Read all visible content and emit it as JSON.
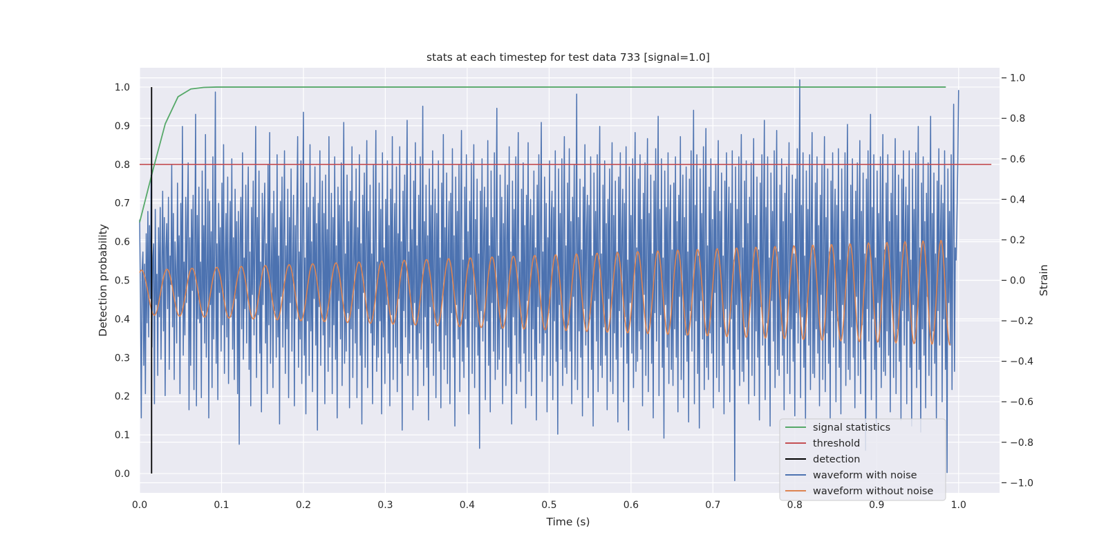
{
  "chart_data": {
    "type": "line",
    "title": "stats at each timestep for test data 733 [signal=1.0]",
    "xlabel": "Time (s)",
    "ylabel_left": "Detection probability",
    "ylabel_right": "Strain",
    "xlim": [
      0.0,
      1.05
    ],
    "ylim_left": [
      -0.05,
      1.05
    ],
    "ylim_right": [
      -1.05,
      1.05
    ],
    "x_ticks": [
      "0.0",
      "0.1",
      "0.2",
      "0.3",
      "0.4",
      "0.5",
      "0.6",
      "0.7",
      "0.8",
      "0.9",
      "1.0"
    ],
    "y_ticks_left": [
      "0.0",
      "0.1",
      "0.2",
      "0.3",
      "0.4",
      "0.5",
      "0.6",
      "0.7",
      "0.8",
      "0.9",
      "1.0"
    ],
    "y_ticks_right": [
      "−1.0",
      "−0.8",
      "−0.6",
      "−0.4",
      "−0.2",
      "0.0",
      "0.2",
      "0.4",
      "0.6",
      "0.8",
      "1.0"
    ],
    "grid": true,
    "legend_position": "bottom-right",
    "colors": {
      "plot_bg": "#eaeaf2",
      "grid": "#ffffff",
      "signal_statistics": "#55a868",
      "threshold": "#c44e52",
      "detection": "#000000",
      "waveform_with_noise": "#4c72b0",
      "waveform_without_noise": "#dd8452"
    },
    "series": [
      {
        "name": "signal statistics",
        "axis": "left",
        "x": [
          0.0,
          0.0156,
          0.0313,
          0.0469,
          0.0625,
          0.0781,
          0.0938,
          0.1094,
          0.125,
          0.25,
          0.5,
          0.75,
          0.9844
        ],
        "y": [
          0.65,
          0.78,
          0.905,
          0.975,
          0.995,
          0.999,
          1.0,
          1.0,
          1.0,
          1.0,
          1.0,
          1.0,
          1.0
        ]
      },
      {
        "name": "threshold",
        "axis": "left",
        "x": [
          0.0,
          1.04
        ],
        "y": [
          0.8,
          0.8
        ]
      },
      {
        "name": "detection",
        "axis": "left",
        "x": [
          0.0146,
          0.0146
        ],
        "y": [
          0.0,
          1.0
        ]
      },
      {
        "name": "waveform with noise",
        "axis": "right",
        "t_start": 0.0,
        "t_end": 1.0,
        "samples": 1000,
        "y": [
          0.3,
          -0.1,
          -0.68,
          0.05,
          0.14,
          -0.42,
          0.08,
          -0.56,
          0.23,
          -0.21,
          0.34,
          -0.28,
          0.27,
          -0.09,
          0.52,
          -0.33,
          0.11,
          0.18,
          -0.61,
          0.35,
          -0.12,
          0.03,
          -0.47,
          0.26,
          -0.18,
          0.36,
          -0.39,
          0.07,
          0.44,
          -0.25,
          0.31,
          -0.57,
          0.16,
          0.28,
          -0.14,
          0.41,
          -0.44,
          0.12,
          -0.02,
          0.57,
          -0.23,
          0.33,
          -0.49,
          0.19,
          0.05,
          -0.31,
          0.48,
          -0.08,
          0.22,
          -0.56,
          0.38,
          -0.16,
          0.76,
          -0.37,
          0.09,
          -0.27,
          0.41,
          -0.11,
          0.29,
          0.58,
          -0.64,
          0.21,
          -0.42,
          0.35,
          -0.05,
          0.42,
          -0.54,
          0.13,
          0.82,
          -0.62,
          0.32,
          -0.19,
          0.46,
          -0.21,
          0.09,
          -0.58,
          0.54,
          -0.15,
          0.27,
          -0.31,
          0.72,
          -0.38,
          0.06,
          0.45,
          -0.68,
          0.39,
          -0.12,
          0.24,
          -0.53,
          0.61,
          -0.29,
          0.15,
          0.93,
          -0.41,
          0.18,
          -0.59,
          0.38,
          -0.06,
          0.26,
          -0.35,
          0.48,
          -0.22,
          0.67,
          -0.46,
          0.12,
          0.33,
          -0.28,
          0.51,
          -0.51,
          0.08,
          0.39,
          -0.18,
          0.6,
          -0.34,
          0.21,
          -0.49,
          0.45,
          -0.09,
          0.29,
          -0.56,
          0.34,
          -0.81,
          0.19,
          0.41,
          -0.24,
          0.63,
          -0.39,
          0.11,
          -0.14,
          0.47,
          -0.31,
          0.25,
          0.56,
          -0.44,
          0.14,
          -0.62,
          0.36,
          -0.07,
          0.49,
          -0.27,
          0.2,
          0.76,
          -0.48,
          0.31,
          -0.17,
          0.54,
          -0.36,
          0.09,
          -0.65,
          0.43,
          -0.12,
          0.28,
          0.48,
          -0.31,
          0.18,
          -0.56,
          0.57,
          -0.22,
          0.73,
          -0.41,
          0.06,
          0.33,
          -0.53,
          0.44,
          -0.15,
          0.26,
          -0.38,
          0.62,
          -0.28,
          0.12,
          -0.71,
          0.39,
          -0.08,
          0.51,
          -0.33,
          0.22,
          0.64,
          -0.46,
          0.17,
          -0.24,
          0.45,
          -0.58,
          0.31,
          -0.11,
          0.55,
          -0.35,
          0.08,
          0.42,
          -0.62,
          0.27,
          -0.19,
          0.35,
          0.71,
          -0.43,
          0.14,
          -0.29,
          0.59,
          -0.51,
          0.24,
          0.83,
          -0.37,
          0.11,
          -0.66,
          0.48,
          -0.2,
          0.36,
          -0.47,
          0.67,
          -0.25,
          0.19,
          -0.55,
          0.41,
          -0.09,
          0.56,
          -0.32,
          0.28,
          -0.74,
          0.38,
          -0.13,
          0.64,
          -0.42,
          0.15,
          0.49,
          -0.27,
          0.33,
          -0.61,
          0.52,
          -0.18,
          0.25,
          -0.45,
          0.71,
          -0.33,
          0.09,
          0.43,
          -0.56,
          0.31,
          -0.22,
          0.61,
          -0.39,
          0.17,
          -0.68,
          0.46,
          -0.1,
          0.37,
          -0.29,
          0.58,
          -0.52,
          0.21,
          0.78,
          -0.41,
          0.13,
          -0.35,
          0.52,
          -0.16,
          0.29,
          -0.63,
          0.44,
          -0.24,
          0.66,
          -0.48,
          0.1,
          0.39,
          -0.31,
          0.55,
          -0.58,
          0.26,
          -0.14,
          0.62,
          -0.37,
          0.18,
          -0.71,
          0.42,
          -0.06,
          0.53,
          -0.43,
          0.24,
          0.69,
          -0.53,
          0.34,
          -0.19,
          0.47,
          -0.26,
          0.13,
          -0.61,
          0.57,
          -0.32,
          0.21,
          0.74,
          -0.45,
          0.09,
          -0.38,
          0.48,
          -0.2,
          0.35,
          -0.66,
          0.63,
          -0.28,
          0.16,
          -0.51,
          0.4,
          -0.12,
          0.59,
          -0.36,
          0.27,
          -0.62,
          0.45,
          -0.17,
          0.71,
          -0.49,
          0.12,
          0.38,
          -0.33,
          0.56,
          -0.55,
          0.23,
          -0.09,
          0.66,
          -0.41,
          0.19,
          -0.74,
          0.44,
          -0.15,
          0.52,
          -0.28,
          0.31,
          0.79,
          -0.47,
          0.14,
          -0.36,
          0.58,
          -0.22,
          0.25,
          -0.64,
          0.49,
          -0.11,
          0.68,
          -0.39,
          0.17,
          -0.57,
          0.42,
          -0.26,
          0.61,
          -0.34,
          0.08,
          0.86,
          -0.52,
          0.29,
          -0.18,
          0.47,
          -0.43,
          0.22,
          -0.69,
          0.55,
          -0.13,
          0.37,
          -0.31,
          0.64,
          -0.47,
          0.15,
          0.45,
          -0.58,
          0.33,
          -0.21,
          0.59,
          -0.35,
          0.11,
          -0.63,
          0.48,
          -0.08,
          0.72,
          -0.44,
          0.26,
          -0.27,
          0.53,
          -0.51,
          0.18,
          0.39,
          -0.61,
          0.43,
          -0.16,
          0.65,
          -0.38,
          0.22,
          -0.72,
          0.51,
          -0.12,
          0.34,
          -0.29,
          0.57,
          -0.55,
          0.27,
          0.74,
          -0.4,
          0.1,
          -0.48,
          0.46,
          -0.19,
          0.62,
          -0.33,
          0.24,
          -0.66,
          0.39,
          -0.07,
          0.58,
          -0.46,
          0.16,
          0.67,
          -0.53,
          0.3,
          -0.23,
          0.5,
          -0.37,
          0.13,
          -0.83,
          0.44,
          -0.15,
          0.6,
          -0.3,
          0.21,
          0.46,
          -0.59,
          0.36,
          -0.2,
          0.69,
          -0.42,
          0.17,
          -0.65,
          0.54,
          -0.11,
          0.31,
          -0.35,
          0.63,
          -0.49,
          0.25,
          0.85,
          -0.44,
          0.12,
          -0.39,
          0.52,
          -0.24,
          0.41,
          -0.61,
          0.28,
          -0.14,
          0.57,
          -0.52,
          0.19,
          0.47,
          -0.33,
          0.66,
          -0.46,
          0.14,
          -0.71,
          0.49,
          -0.18,
          0.35,
          -0.27,
          0.61,
          -0.56,
          0.23,
          0.73,
          -0.41,
          0.09,
          -0.5,
          0.45,
          -0.21,
          0.58,
          -0.36,
          0.27,
          -0.63,
          0.42,
          -0.1,
          0.68,
          -0.45,
          0.2,
          0.4,
          -0.57,
          0.32,
          -0.24,
          0.54,
          -0.39,
          0.16,
          -0.69,
          0.47,
          -0.13,
          0.62,
          -0.31,
          0.26,
          0.78,
          -0.5,
          0.14,
          -0.37,
          0.51,
          -0.26,
          0.38,
          -0.65,
          0.21,
          -0.16,
          0.59,
          -0.47,
          0.29,
          0.44,
          -0.59,
          0.36,
          -0.2,
          0.64,
          -0.4,
          0.11,
          -0.76,
          0.55,
          -0.12,
          0.33,
          -0.34,
          0.6,
          -0.52,
          0.24,
          0.71,
          -0.43,
          0.17,
          -0.46,
          0.48,
          -0.22,
          0.65,
          -0.35,
          0.29,
          -0.61,
          0.41,
          -0.08,
          0.57,
          -0.49,
          0.18,
          0.92,
          -0.54,
          0.31,
          -0.25,
          0.5,
          -0.38,
          0.15,
          -0.67,
          0.46,
          -0.14,
          0.67,
          -0.32,
          0.23,
          0.42,
          -0.58,
          0.37,
          -0.19,
          0.61,
          -0.44,
          0.12,
          -0.72,
          0.53,
          -0.1,
          0.34,
          -0.3,
          0.62,
          -0.55,
          0.26,
          0.76,
          -0.42,
          0.13,
          -0.48,
          0.47,
          -0.23,
          0.59,
          -0.37,
          0.28,
          -0.64,
          0.4,
          -0.09,
          0.55,
          -0.5,
          0.19,
          0.68,
          -0.56,
          0.32,
          -0.26,
          0.49,
          -0.39,
          0.14,
          -0.7,
          0.51,
          -0.15,
          0.63,
          -0.33,
          0.22,
          0.45,
          -0.6,
          0.38,
          -0.18,
          0.66,
          -0.41,
          0.1,
          -0.74,
          0.56,
          -0.11,
          0.32,
          -0.36,
          0.6,
          -0.53,
          0.25,
          0.73,
          -0.45,
          0.16,
          -0.4,
          0.5,
          -0.25,
          0.62,
          -0.34,
          0.3,
          -0.62,
          0.43,
          -0.07,
          0.58,
          -0.47,
          0.2,
          0.7,
          -0.55,
          0.33,
          -0.22,
          0.52,
          -0.41,
          0.13,
          -0.68,
          0.49,
          -0.16,
          0.65,
          -0.3,
          0.24,
          0.81,
          -0.57,
          0.35,
          -0.17,
          0.6,
          -0.43,
          0.11,
          -0.78,
          0.54,
          -0.12,
          0.36,
          -0.33,
          0.63,
          -0.51,
          0.27,
          0.47,
          -0.44,
          0.15,
          -0.52,
          0.48,
          -0.24,
          0.61,
          -0.38,
          0.29,
          -0.65,
          0.42,
          -0.08,
          0.71,
          -0.49,
          0.18,
          0.52,
          -0.58,
          0.31,
          -0.27,
          0.56,
          -0.4,
          0.14,
          -0.7,
          0.5,
          -0.15,
          0.64,
          -0.35,
          0.23,
          0.84,
          -0.61,
          0.37,
          -0.2,
          0.62,
          -0.46,
          0.12,
          -0.73,
          0.55,
          -0.1,
          0.33,
          -0.29,
          0.66,
          -0.54,
          0.26,
          0.75,
          -0.43,
          0.17,
          -0.49,
          0.46,
          -0.26,
          0.6,
          -0.36,
          0.3,
          -0.63,
          0.44,
          -0.06,
          0.57,
          -0.48,
          0.21,
          0.69,
          -0.55,
          0.34,
          -0.23,
          0.53,
          -0.42,
          0.12,
          -0.66,
          0.49,
          -0.14,
          0.63,
          -0.31,
          0.25,
          0.46,
          -0.6,
          0.38,
          -0.19,
          0.64,
          -0.44,
          0.1,
          -0.99,
          0.56,
          -0.12,
          0.35,
          -0.34,
          0.61,
          -0.52,
          0.27,
          0.72,
          -0.45,
          0.16,
          -0.5,
          0.49,
          -0.23,
          0.59,
          -0.39,
          0.28,
          -0.61,
          0.41,
          -0.08,
          0.58,
          -0.47,
          0.19,
          0.7,
          -0.57,
          0.32,
          -0.25,
          0.51,
          -0.38,
          0.15,
          -0.69,
          0.48,
          -0.13,
          0.62,
          -0.32,
          0.24,
          0.79,
          -0.59,
          0.36,
          -0.21,
          0.61,
          -0.42,
          0.11,
          -0.72,
          0.53,
          -0.1,
          0.34,
          -0.3,
          0.64,
          -0.53,
          0.26,
          0.74,
          -0.44,
          0.14,
          -0.47,
          0.47,
          -0.25,
          0.6,
          -0.37,
          0.29,
          -0.64,
          0.43,
          -0.09,
          0.56,
          -0.46,
          0.2,
          0.68,
          -0.56,
          0.33,
          -0.24,
          0.52,
          -0.4,
          0.13,
          -0.67,
          0.5,
          -0.16,
          0.65,
          -0.31,
          0.22,
          0.99,
          -0.58,
          0.37,
          -0.18,
          0.63,
          -0.43,
          0.12,
          -0.71,
          0.54,
          -0.11,
          0.35,
          -0.32,
          0.62,
          -0.54,
          0.28,
          0.73,
          -0.46,
          0.15,
          -0.48,
          0.48,
          -0.24,
          0.61,
          -0.36,
          0.27,
          -0.62,
          0.42,
          -0.07,
          0.57,
          -0.49,
          0.19,
          0.71,
          -0.55,
          0.31,
          -0.26,
          0.55,
          -0.41,
          0.14,
          -0.68,
          0.49,
          -0.15,
          0.63,
          -0.33,
          0.23,
          0.45,
          -0.6,
          0.37,
          -0.2,
          0.65,
          -0.43,
          0.1,
          -0.66,
          0.55,
          -0.12,
          0.34,
          -0.31,
          0.63,
          -0.52,
          0.25,
          0.77,
          -0.44,
          0.16,
          -0.49,
          0.47,
          -0.23,
          0.6,
          -0.38,
          0.3,
          -0.63,
          0.44,
          -0.08,
          0.58,
          -0.47,
          0.2,
          0.69,
          -0.56,
          0.34,
          -0.22,
          0.53,
          -0.39,
          0.13,
          -0.84,
          0.5,
          -0.14,
          0.64,
          -0.3,
          0.25,
          0.82,
          -0.59,
          0.36,
          -0.19,
          0.62,
          -0.44,
          0.11,
          -0.74,
          0.54,
          -0.11,
          0.33,
          -0.33,
          0.61,
          -0.53,
          0.27,
          0.72,
          -0.45,
          0.15,
          -0.47,
          0.48,
          -0.25,
          0.62,
          -0.37,
          0.29,
          -0.65,
          0.43,
          -0.09,
          0.57,
          -0.48,
          0.18,
          0.7,
          -0.56,
          0.32,
          -0.24,
          0.52,
          -0.4,
          0.14,
          -0.69,
          0.5,
          -0.15,
          0.64,
          -0.32,
          0.24,
          0.46,
          -0.61,
          0.37,
          -0.2,
          0.64,
          -0.43,
          0.1,
          -0.72,
          0.55,
          -0.12,
          0.35,
          -0.31,
          0.63,
          -0.53,
          0.26,
          0.76,
          -0.44,
          0.16,
          -0.75,
          0.48,
          -0.24,
          0.61,
          -0.37,
          0.29,
          -0.63,
          0.43,
          -0.08,
          0.58,
          -0.47,
          0.2,
          0.81,
          -0.57,
          0.33,
          -0.25,
          0.53,
          -0.41,
          0.13,
          -0.68,
          0.49,
          -0.15,
          0.65,
          -0.32,
          0.24,
          0.47,
          -0.6,
          0.38,
          -0.19,
          0.64,
          -0.44,
          0.11,
          -0.95,
          0.55,
          -0.11,
          0.34,
          -0.32,
          0.62,
          -0.54,
          0.27,
          0.87,
          -0.45,
          0.16,
          0.1,
          0.31,
          0.56,
          0.94
        ]
      },
      {
        "name": "waveform without noise",
        "axis": "right",
        "t_start": 0.0,
        "t_end": 0.99,
        "samples": 1000,
        "description_free_params": {
          "amp_start": 0.11,
          "amp_end": 0.26,
          "freq_start_hz": 32,
          "freq_end_hz": 46,
          "offset": -0.06
        }
      }
    ],
    "legend": [
      "signal statistics",
      "threshold",
      "detection",
      "waveform with noise",
      "waveform without noise"
    ]
  }
}
